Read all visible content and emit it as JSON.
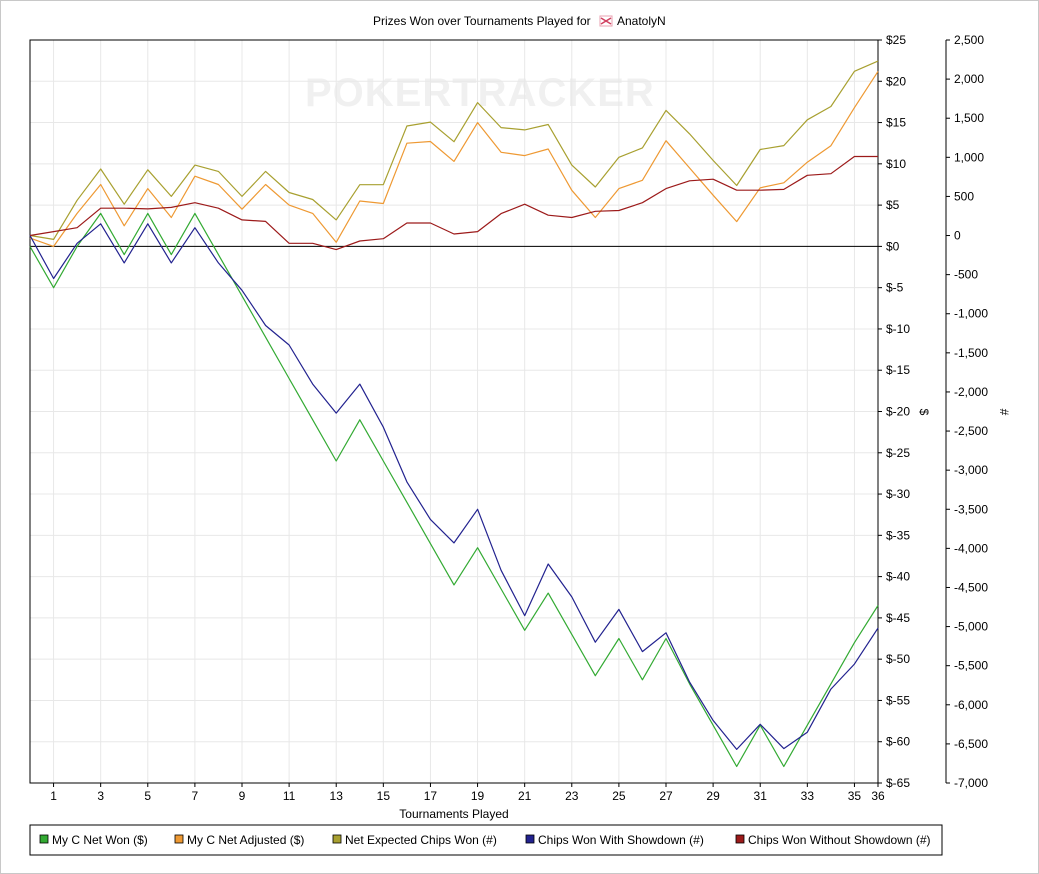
{
  "chart_data": {
    "type": "line",
    "title": "Prizes Won over Tournaments Played for",
    "player": "AnatolyN",
    "watermark": "POKERTRACKER",
    "xlabel": "Tournaments Played",
    "ylabel_left": "$",
    "ylabel_right": "#",
    "xlim": [
      0,
      36
    ],
    "x_ticks": [
      "1",
      "3",
      "5",
      "7",
      "9",
      "11",
      "13",
      "15",
      "17",
      "19",
      "21",
      "23",
      "25",
      "27",
      "29",
      "31",
      "33",
      "35",
      "36"
    ],
    "ylim_left": [
      -65,
      25
    ],
    "ylim_right": [
      -7000,
      2500
    ],
    "y_ticks_left": [
      "$25",
      "$20",
      "$15",
      "$10",
      "$5",
      "$0",
      "$-5",
      "$-10",
      "$-15",
      "$-20",
      "$-25",
      "$-30",
      "$-35",
      "$-40",
      "$-45",
      "$-50",
      "$-55",
      "$-60",
      "$-65"
    ],
    "y_ticks_right": [
      "2,500",
      "2,000",
      "1,500",
      "1,000",
      "500",
      "0",
      "-500",
      "-1,000",
      "-1,500",
      "-2,000",
      "-2,500",
      "-3,000",
      "-3,500",
      "-4,000",
      "-4,500",
      "-5,000",
      "-5,500",
      "-6,000",
      "-6,500",
      "-7,000"
    ],
    "grid": true,
    "legend_position": "bottom-left",
    "x": [
      0,
      1,
      2,
      3,
      4,
      5,
      6,
      7,
      8,
      9,
      10,
      11,
      12,
      13,
      14,
      15,
      16,
      17,
      18,
      19,
      20,
      21,
      22,
      23,
      24,
      25,
      26,
      27,
      28,
      29,
      30,
      31,
      32,
      33,
      34,
      35,
      36
    ],
    "series": [
      {
        "name": "My C Net Won ($)",
        "axis": "left",
        "color": "#33aa33",
        "values": [
          0,
          -5,
          0,
          4,
          -1,
          4,
          -1,
          4,
          -1,
          -6,
          -11,
          -16,
          -21,
          -26,
          -21,
          -26,
          -31,
          -36,
          -41,
          -36.5,
          -41.5,
          -46.5,
          -42,
          -47,
          -52,
          -47.5,
          -52.5,
          -47.5,
          -53,
          -58,
          -63,
          -58,
          -63,
          -58,
          -53,
          -48,
          -43.5
        ]
      },
      {
        "name": "My C Net Adjusted ($)",
        "axis": "left",
        "color": "#ee9933",
        "values": [
          1,
          0,
          4,
          7.5,
          2.5,
          7,
          3.5,
          8.5,
          7.5,
          4.5,
          7.5,
          5,
          4,
          0.5,
          5.5,
          5.2,
          12.5,
          12.7,
          10.3,
          15,
          11.4,
          11,
          11.8,
          6.8,
          3.5,
          7,
          8,
          12.8,
          9.5,
          6.2,
          3,
          7.1,
          7.7,
          10.2,
          12.2,
          16.8,
          21.2
        ]
      },
      {
        "name": "Net Expected Chips Won (#)",
        "axis": "right",
        "color": "#a8a030",
        "values": [
          0,
          -50,
          450,
          850,
          400,
          840,
          500,
          900,
          820,
          500,
          820,
          550,
          460,
          200,
          650,
          650,
          1400,
          1450,
          1200,
          1700,
          1380,
          1350,
          1420,
          900,
          620,
          1000,
          1120,
          1600,
          1300,
          960,
          640,
          1100,
          1150,
          1480,
          1650,
          2100,
          2230
        ]
      },
      {
        "name": "Chips Won With Showdown (#)",
        "axis": "right",
        "color": "#22228f",
        "values": [
          0,
          -550,
          -100,
          150,
          -350,
          150,
          -350,
          100,
          -350,
          -700,
          -1150,
          -1400,
          -1900,
          -2270,
          -1900,
          -2450,
          -3150,
          -3630,
          -3930,
          -3500,
          -4280,
          -4860,
          -4200,
          -4620,
          -5200,
          -4780,
          -5320,
          -5080,
          -5710,
          -6200,
          -6570,
          -6250,
          -6560,
          -6350,
          -5800,
          -5480,
          -5020
        ]
      },
      {
        "name": "Chips Won Without Showdown (#)",
        "axis": "right",
        "color": "#9c1a1a",
        "values": [
          0,
          50,
          100,
          350,
          350,
          340,
          360,
          420,
          350,
          200,
          180,
          -100,
          -100,
          -180,
          -70,
          -40,
          160,
          160,
          20,
          50,
          280,
          400,
          260,
          230,
          310,
          320,
          420,
          600,
          700,
          720,
          580,
          580,
          590,
          770,
          790,
          1010,
          1010
        ]
      }
    ]
  }
}
